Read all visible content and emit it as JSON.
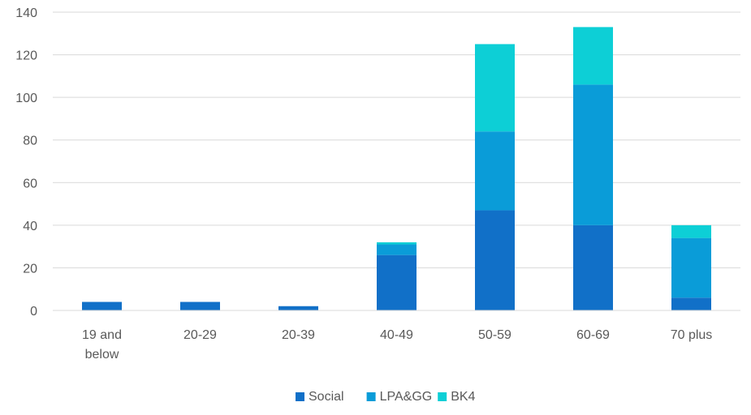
{
  "chart_data": {
    "type": "bar",
    "stacked": true,
    "categories": [
      "19 and below",
      "20-29",
      "20-39",
      "40-49",
      "50-59",
      "60-69",
      "70 plus"
    ],
    "category_lines": [
      [
        "19 and",
        "below"
      ],
      [
        "20-29"
      ],
      [
        "20-39"
      ],
      [
        "40-49"
      ],
      [
        "50-59"
      ],
      [
        "60-69"
      ],
      [
        "70 plus"
      ]
    ],
    "series": [
      {
        "name": "Social",
        "color": "#1170c8",
        "values": [
          4,
          4,
          2,
          26,
          47,
          40,
          6
        ]
      },
      {
        "name": "LPA&GG",
        "color": "#0a9cd8",
        "values": [
          0,
          0,
          0,
          5,
          37,
          66,
          28
        ]
      },
      {
        "name": "BK4",
        "color": "#0dcfd6",
        "values": [
          0,
          0,
          0,
          1,
          41,
          27,
          6
        ]
      }
    ],
    "ylim": [
      0,
      140
    ],
    "yticks": [
      0,
      20,
      40,
      60,
      80,
      100,
      120,
      140
    ],
    "title": "",
    "xlabel": "",
    "ylabel": "",
    "grid": true,
    "legend_position": "bottom"
  }
}
